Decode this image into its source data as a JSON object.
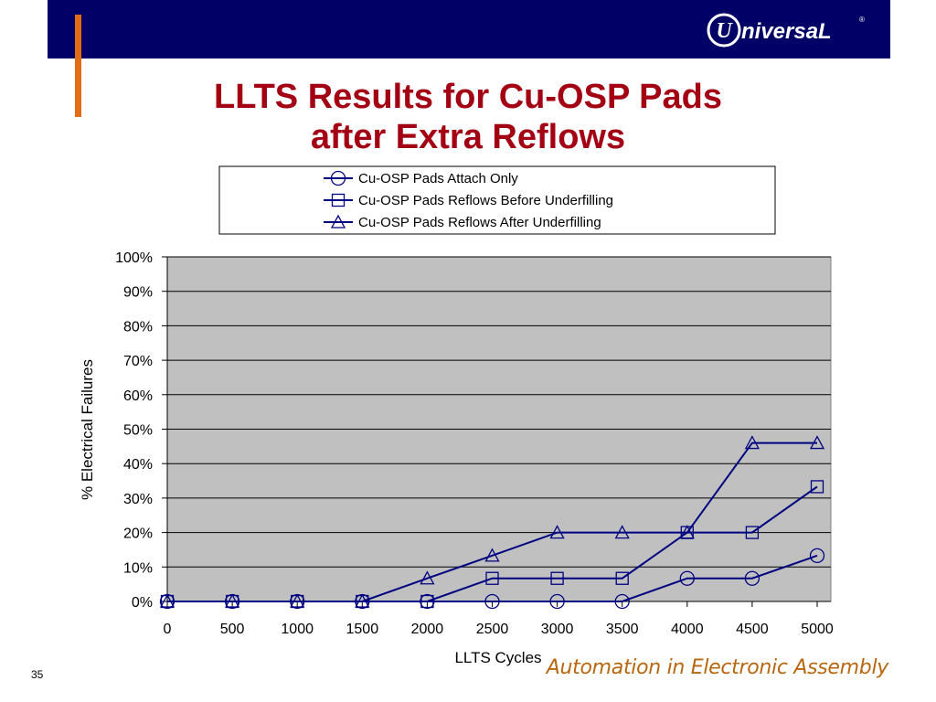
{
  "slide": {
    "title_line1": "LLTS Results for Cu-OSP Pads",
    "title_line2": "after Extra Reflows",
    "logo_text": "niversaL",
    "page_number": "35",
    "tagline": "Automation in Electronic Assembly"
  },
  "colors": {
    "header": "#000066",
    "accent": "#e06c14",
    "title": "#a30014",
    "series": "#000080",
    "plot_background": "#c0c0c0",
    "tagline": "#b8670e"
  },
  "chart_data": {
    "type": "line",
    "title": "LLTS Results for Cu-OSP Pads after Extra Reflows",
    "xlabel": "LLTS Cycles",
    "ylabel": "% Electrical Failures",
    "x": [
      0,
      500,
      1000,
      1500,
      2000,
      2500,
      3000,
      3500,
      4000,
      4500,
      5000
    ],
    "x_tick_labels": [
      "0",
      "500",
      "1000",
      "1500",
      "2000",
      "2500",
      "3000",
      "3500",
      "4000",
      "4500",
      "5000"
    ],
    "y_tick_labels": [
      "0%",
      "10%",
      "20%",
      "30%",
      "40%",
      "50%",
      "60%",
      "70%",
      "80%",
      "90%",
      "100%"
    ],
    "ylim": [
      0,
      100
    ],
    "xlim": [
      0,
      5000
    ],
    "grid": "horizontal",
    "legend": "top",
    "series": [
      {
        "name": "Cu-OSP Pads Attach Only",
        "marker": "circle",
        "values": [
          0,
          0,
          0,
          0,
          0,
          0,
          0,
          0,
          6.7,
          6.7,
          13.3
        ]
      },
      {
        "name": "Cu-OSP Pads Reflows Before Underfilling",
        "marker": "square",
        "values": [
          0,
          0,
          0,
          0,
          0,
          6.7,
          6.7,
          6.7,
          20,
          20,
          33.3
        ]
      },
      {
        "name": "Cu-OSP Pads Reflows After Underfilling",
        "marker": "triangle",
        "values": [
          0,
          0,
          0,
          0,
          6.7,
          13.3,
          20,
          20,
          20,
          46,
          46
        ]
      }
    ]
  }
}
